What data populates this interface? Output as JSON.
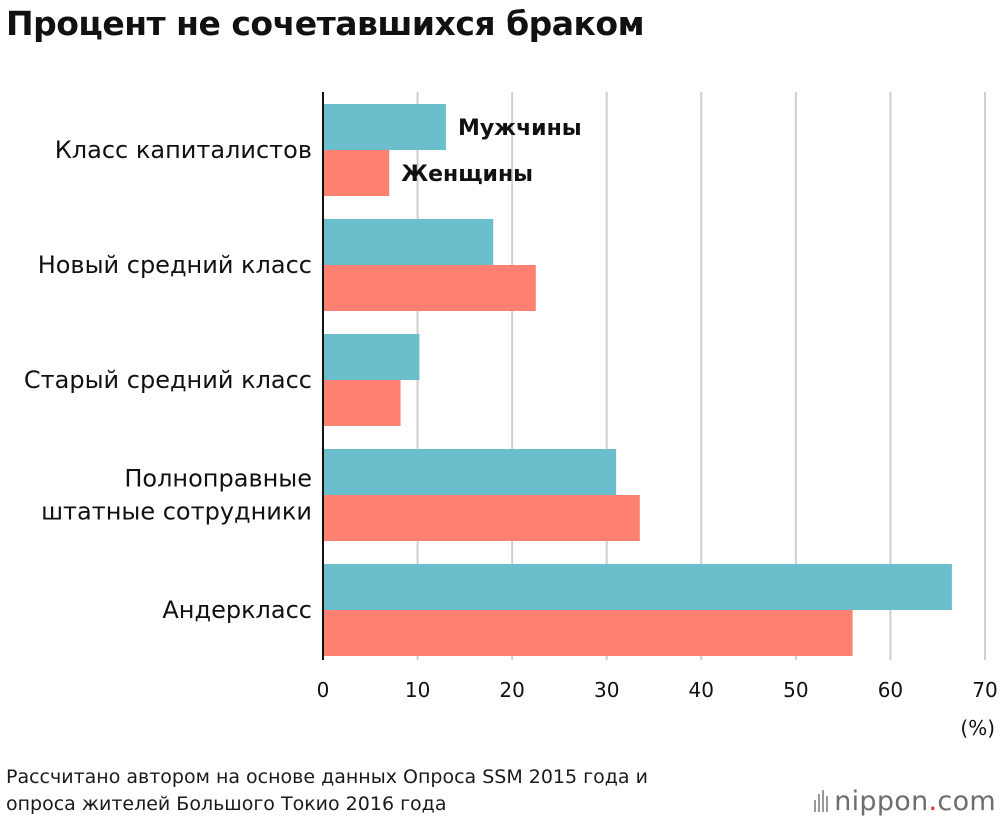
{
  "title": "Процент не сочетавшихся браком",
  "chart_data": {
    "type": "bar",
    "orientation": "horizontal",
    "categories": [
      [
        "Класс капиталистов"
      ],
      [
        "Новый средний класс"
      ],
      [
        "Старый средний класс"
      ],
      [
        "Полноправные",
        "штатные сотрудники"
      ],
      [
        "Андеркласс"
      ]
    ],
    "series": [
      {
        "name": "Мужчины",
        "color": "#6bbfcc",
        "values": [
          13.0,
          18.0,
          10.2,
          31.0,
          66.5
        ]
      },
      {
        "name": "Женщины",
        "color": "#fe8070",
        "values": [
          7.0,
          22.5,
          8.2,
          33.5,
          56.0
        ]
      }
    ],
    "xlim": [
      0,
      70
    ],
    "xticks": [
      0,
      10,
      20,
      30,
      40,
      50,
      60,
      70
    ],
    "unit_label": "(%)",
    "grid": true,
    "legend": "labels beside the first category's bars"
  },
  "source": {
    "line1": "Рассчитано автором на основе данных Опроса SSM 2015 года и",
    "line2": "опроса жителей Большого Токио 2016 года"
  },
  "brand": {
    "name": "nippon",
    "dot": ".",
    "suffix": "com"
  }
}
